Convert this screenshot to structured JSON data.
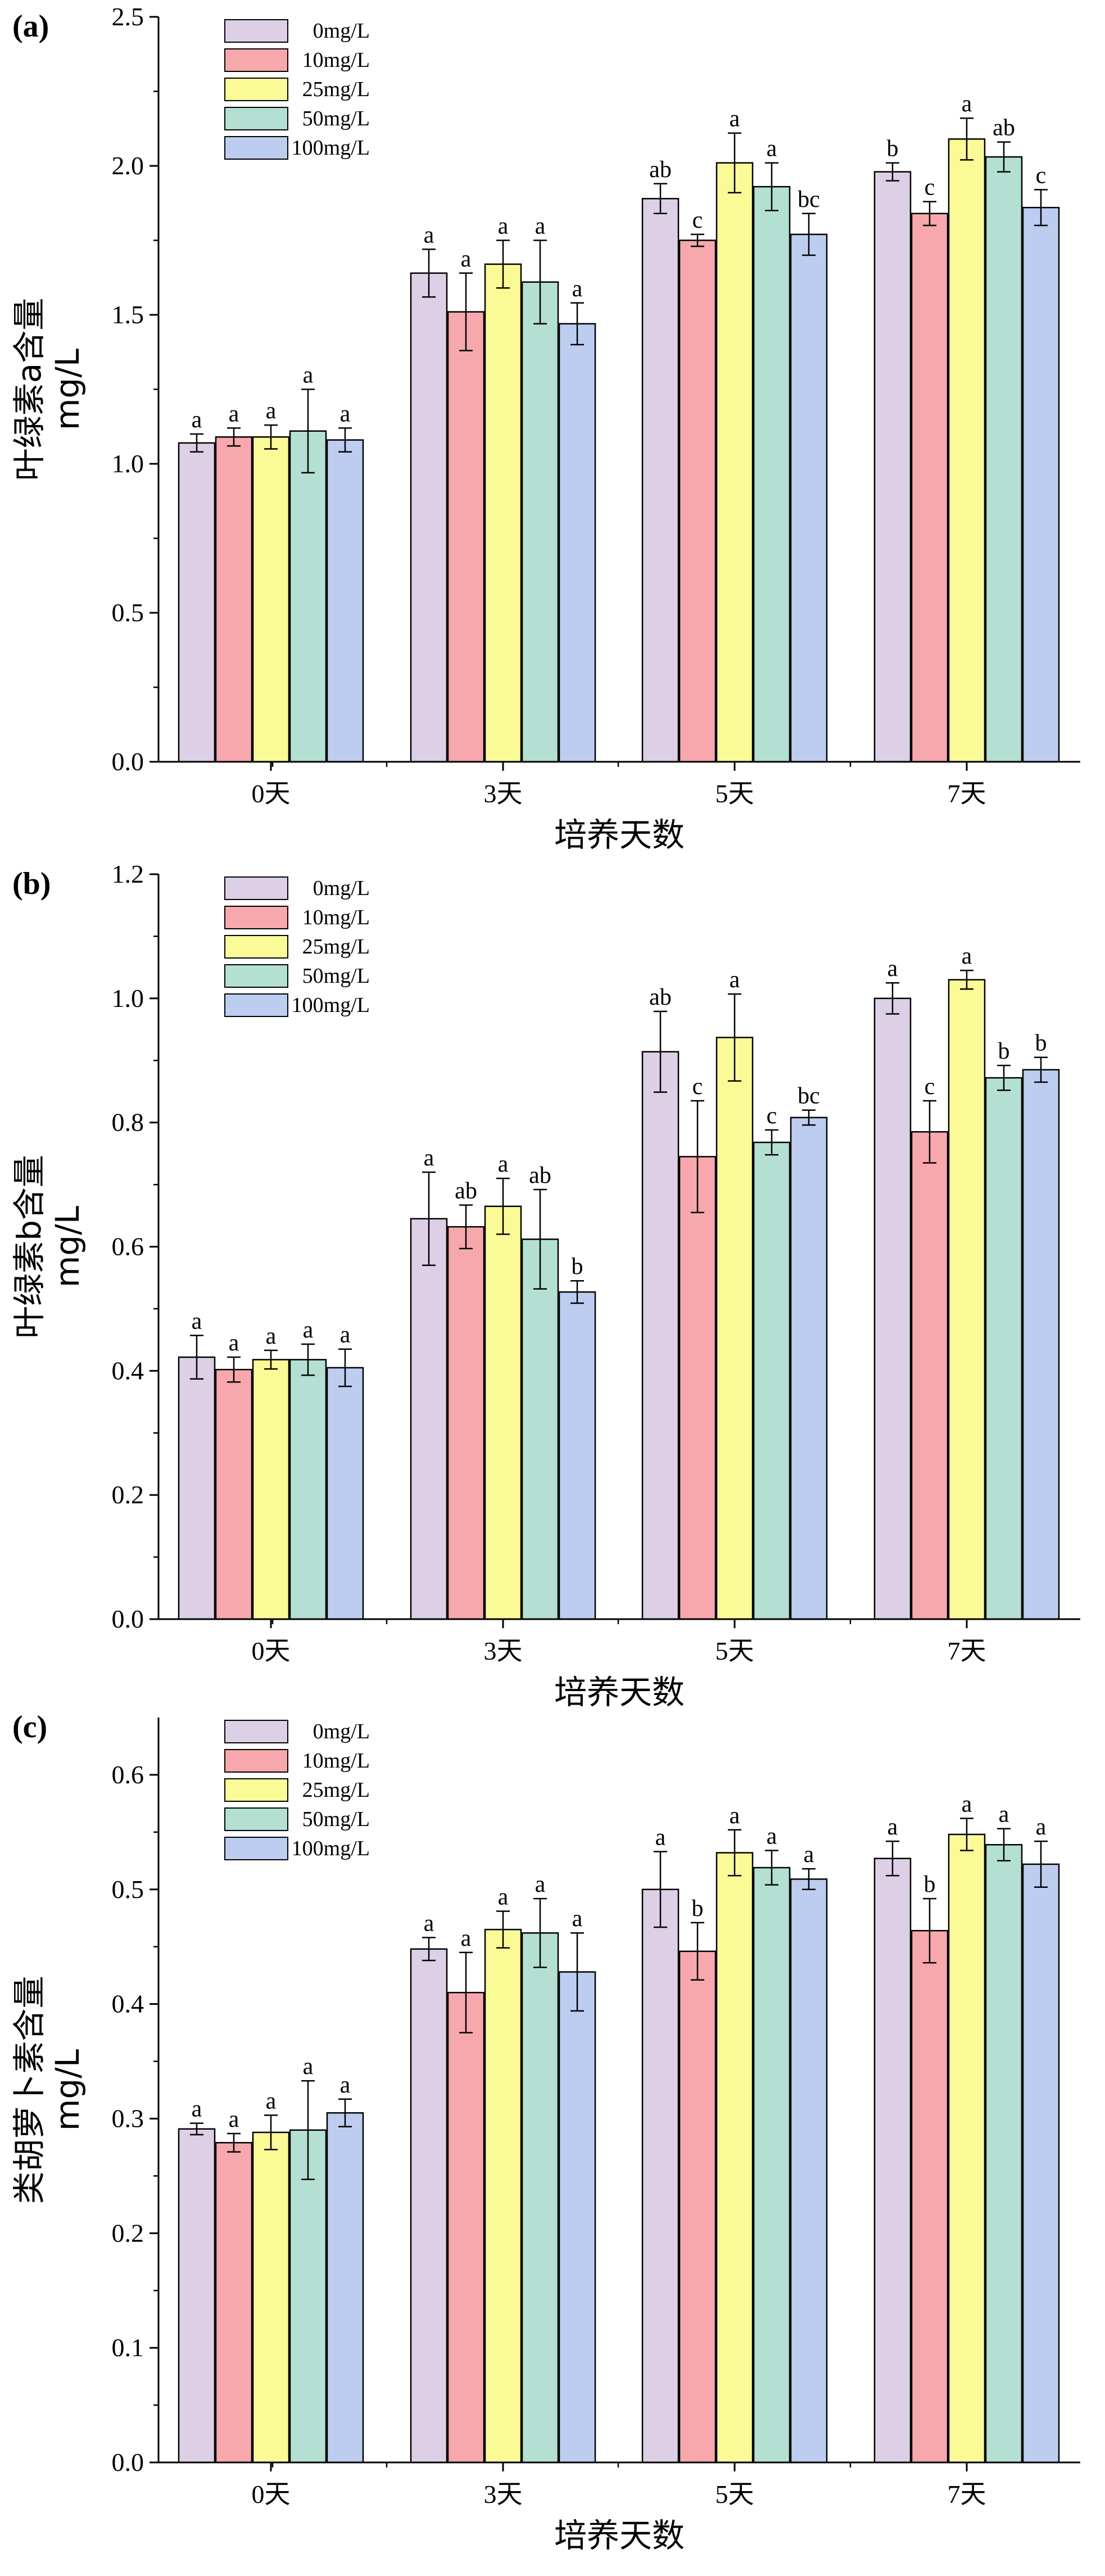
{
  "chart_data": [
    {
      "type": "bar",
      "panel": "(a)",
      "ylabel": "叶绿素a含量 mg/L",
      "ylabel_lines": [
        "叶绿素a含量",
        "mg/L"
      ],
      "xlabel": "培养天数",
      "categories": [
        "0天",
        "3天",
        "5天",
        "7天"
      ],
      "ylim": [
        0,
        2.5
      ],
      "yticks": [
        0.0,
        0.5,
        1.0,
        1.5,
        2.0,
        2.5
      ],
      "ytick_labels": [
        "0.0",
        "0.5",
        "1.0",
        "1.5",
        "2.0",
        "2.5"
      ],
      "legend_position": "top-left",
      "series": [
        {
          "name": "0mg/L",
          "values": [
            1.07,
            1.64,
            1.89,
            1.98
          ],
          "errors": [
            0.03,
            0.08,
            0.05,
            0.03
          ],
          "letters": [
            "a",
            "a",
            "ab",
            "b"
          ]
        },
        {
          "name": "10mg/L",
          "values": [
            1.09,
            1.51,
            1.75,
            1.84
          ],
          "errors": [
            0.03,
            0.13,
            0.02,
            0.04
          ],
          "letters": [
            "a",
            "a",
            "c",
            "c"
          ]
        },
        {
          "name": "25mg/L",
          "values": [
            1.09,
            1.67,
            2.01,
            2.09
          ],
          "errors": [
            0.04,
            0.08,
            0.1,
            0.07
          ],
          "letters": [
            "a",
            "a",
            "a",
            "a"
          ]
        },
        {
          "name": "50mg/L",
          "values": [
            1.11,
            1.61,
            1.93,
            2.03
          ],
          "errors": [
            0.14,
            0.14,
            0.08,
            0.05
          ],
          "letters": [
            "a",
            "a",
            "a",
            "ab"
          ]
        },
        {
          "name": "100mg/L",
          "values": [
            1.08,
            1.47,
            1.77,
            1.86
          ],
          "errors": [
            0.04,
            0.07,
            0.07,
            0.06
          ],
          "letters": [
            "a",
            "a",
            "bc",
            "c"
          ]
        }
      ]
    },
    {
      "type": "bar",
      "panel": "(b)",
      "ylabel": "叶绿素b含量 mg/L",
      "ylabel_lines": [
        "叶绿素b含量",
        "mg/L"
      ],
      "xlabel": "培养天数",
      "categories": [
        "0天",
        "3天",
        "5天",
        "7天"
      ],
      "ylim": [
        0,
        1.2
      ],
      "yticks": [
        0.0,
        0.2,
        0.4,
        0.6,
        0.8,
        1.0,
        1.2
      ],
      "ytick_labels": [
        "0.0",
        "0.2",
        "0.4",
        "0.6",
        "0.8",
        "1.0",
        "1.2"
      ],
      "legend_position": "top-left",
      "series": [
        {
          "name": "0mg/L",
          "values": [
            0.422,
            0.645,
            0.914,
            1.0
          ],
          "errors": [
            0.035,
            0.075,
            0.065,
            0.025
          ],
          "letters": [
            "a",
            "a",
            "ab",
            "a"
          ]
        },
        {
          "name": "10mg/L",
          "values": [
            0.402,
            0.632,
            0.745,
            0.785
          ],
          "errors": [
            0.02,
            0.035,
            0.09,
            0.05
          ],
          "letters": [
            "a",
            "ab",
            "c",
            "c"
          ]
        },
        {
          "name": "25mg/L",
          "values": [
            0.418,
            0.665,
            0.937,
            1.03
          ],
          "errors": [
            0.015,
            0.045,
            0.07,
            0.015
          ],
          "letters": [
            "a",
            "a",
            "a",
            "a"
          ]
        },
        {
          "name": "50mg/L",
          "values": [
            0.418,
            0.612,
            0.768,
            0.872
          ],
          "errors": [
            0.025,
            0.08,
            0.02,
            0.02
          ],
          "letters": [
            "a",
            "ab",
            "c",
            "b"
          ]
        },
        {
          "name": "100mg/L",
          "values": [
            0.405,
            0.527,
            0.808,
            0.885
          ],
          "errors": [
            0.03,
            0.018,
            0.012,
            0.02
          ],
          "letters": [
            "a",
            "b",
            "bc",
            "b"
          ]
        }
      ]
    },
    {
      "type": "bar",
      "panel": "(c)",
      "ylabel": "类胡萝卜素含量 mg/L",
      "ylabel_lines": [
        "类胡萝卜素含量",
        "mg/L"
      ],
      "xlabel": "培养天数",
      "categories": [
        "0天",
        "3天",
        "5天",
        "7天"
      ],
      "ylim": [
        0,
        0.65
      ],
      "yticks": [
        0.0,
        0.1,
        0.2,
        0.3,
        0.4,
        0.5,
        0.6
      ],
      "ytick_labels": [
        "0.0",
        "0.1",
        "0.2",
        "0.3",
        "0.4",
        "0.5",
        "0.6"
      ],
      "legend_position": "top-left",
      "series": [
        {
          "name": "0mg/L",
          "values": [
            0.291,
            0.448,
            0.5,
            0.527
          ],
          "errors": [
            0.005,
            0.01,
            0.033,
            0.015
          ],
          "letters": [
            "a",
            "a",
            "a",
            "a"
          ]
        },
        {
          "name": "10mg/L",
          "values": [
            0.279,
            0.41,
            0.446,
            0.464
          ],
          "errors": [
            0.008,
            0.035,
            0.025,
            0.028
          ],
          "letters": [
            "a",
            "a",
            "b",
            "b"
          ]
        },
        {
          "name": "25mg/L",
          "values": [
            0.288,
            0.465,
            0.532,
            0.548
          ],
          "errors": [
            0.015,
            0.016,
            0.02,
            0.014
          ],
          "letters": [
            "a",
            "a",
            "a",
            "a"
          ]
        },
        {
          "name": "50mg/L",
          "values": [
            0.29,
            0.462,
            0.519,
            0.539
          ],
          "errors": [
            0.043,
            0.03,
            0.015,
            0.014
          ],
          "letters": [
            "a",
            "a",
            "a",
            "a"
          ]
        },
        {
          "name": "100mg/L",
          "values": [
            0.305,
            0.428,
            0.509,
            0.522
          ],
          "errors": [
            0.012,
            0.034,
            0.009,
            0.02
          ],
          "letters": [
            "a",
            "a",
            "a",
            "a"
          ]
        }
      ]
    }
  ],
  "colors": {
    "0mg/L": "#dccfe6",
    "10mg/L": "#f6a8ac",
    "25mg/L": "#fafa96",
    "50mg/L": "#b3e0d2",
    "100mg/L": "#bccdf0",
    "stroke": "#000000"
  }
}
